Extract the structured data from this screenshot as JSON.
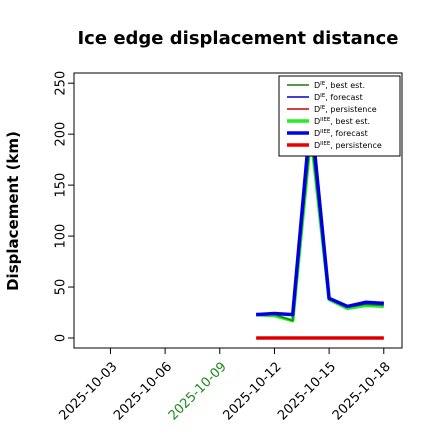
{
  "chart_data": {
    "type": "line",
    "title": "Ice edge displacement distance",
    "ylabel": "Displacement (km)",
    "xlabel": "",
    "ylim": [
      0,
      260
    ],
    "yticks": [
      0,
      50,
      100,
      150,
      200,
      250
    ],
    "xlim": [
      "2025-10-01",
      "2025-10-19"
    ],
    "xticks": [
      {
        "date": "2025-10-03",
        "label": "2025-10-03",
        "color": "#000000"
      },
      {
        "date": "2025-10-06",
        "label": "2025-10-06",
        "color": "#000000"
      },
      {
        "date": "2025-10-09",
        "label": "2025-10-09",
        "color": "#1a8a1a"
      },
      {
        "date": "2025-10-12",
        "label": "2025-10-12",
        "color": "#000000"
      },
      {
        "date": "2025-10-15",
        "label": "2025-10-15",
        "color": "#000000"
      },
      {
        "date": "2025-10-18",
        "label": "2025-10-18",
        "color": "#000000"
      }
    ],
    "grid": false,
    "legend_position": "top-right",
    "series": [
      {
        "name": "D^IE, best est.",
        "label_main": "D",
        "label_sup": "IE",
        "label_rest": ", best est.",
        "color": "#1a7a1a",
        "width": 1.5,
        "x": [
          "2025-10-11",
          "2025-10-12",
          "2025-10-13",
          "2025-10-14",
          "2025-10-15",
          "2025-10-16",
          "2025-10-17",
          "2025-10-18"
        ],
        "y": [
          24,
          23,
          17,
          200,
          38,
          30,
          33,
          32
        ]
      },
      {
        "name": "D^IE, forecast",
        "label_main": "D",
        "label_sup": "IE",
        "label_rest": ", forecast",
        "color": "#0000cc",
        "width": 1.5,
        "x": [
          "2025-10-11",
          "2025-10-12",
          "2025-10-13",
          "2025-10-14",
          "2025-10-15",
          "2025-10-16",
          "2025-10-17",
          "2025-10-18"
        ],
        "y": [
          23,
          24,
          23,
          220,
          39,
          31,
          35,
          34
        ]
      },
      {
        "name": "D^IE, persistence",
        "label_main": "D",
        "label_sup": "IE",
        "label_rest": ", persistence",
        "color": "#cc0000",
        "width": 1.5,
        "x": [
          "2025-10-11",
          "2025-10-18"
        ],
        "y": [
          0,
          0
        ]
      },
      {
        "name": "D^IIEE, best est.",
        "label_main": "D",
        "label_sup": "IIEE",
        "label_rest": ", best est.",
        "color": "#22ee22",
        "width": 3.5,
        "x": [
          "2025-10-11",
          "2025-10-12",
          "2025-10-13",
          "2025-10-14",
          "2025-10-15",
          "2025-10-16",
          "2025-10-17",
          "2025-10-18"
        ],
        "y": [
          23,
          22,
          17,
          200,
          38,
          29,
          32,
          31
        ]
      },
      {
        "name": "D^IIEE, forecast",
        "label_main": "D",
        "label_sup": "IIEE",
        "label_rest": ", forecast",
        "color": "#0000ee",
        "width": 3.5,
        "x": [
          "2025-10-11",
          "2025-10-12",
          "2025-10-13",
          "2025-10-14",
          "2025-10-15",
          "2025-10-16",
          "2025-10-17",
          "2025-10-18"
        ],
        "y": [
          23,
          24,
          23,
          220,
          39,
          31,
          35,
          34
        ]
      },
      {
        "name": "D^IIEE, persistence",
        "label_main": "D",
        "label_sup": "IIEE",
        "label_rest": ", persistence",
        "color": "#ee0000",
        "width": 3.5,
        "x": [
          "2025-10-11",
          "2025-10-18"
        ],
        "y": [
          0,
          0
        ]
      }
    ]
  }
}
